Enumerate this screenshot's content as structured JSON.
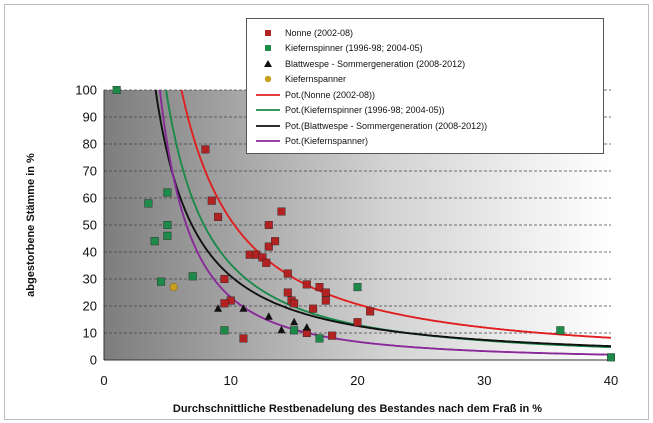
{
  "chart_data": {
    "type": "scatter",
    "title": "",
    "xlabel": "Durchschnittliche  Restbenadelung  des Bestandes  nach dem Fraß in %",
    "ylabel": "abgestorbene Stämme in %",
    "xlim": [
      0,
      40
    ],
    "ylim": [
      0,
      100
    ],
    "x_ticks": [
      "0",
      "10",
      "20",
      "30",
      "40"
    ],
    "y_ticks": [
      "0",
      "10",
      "20",
      "30",
      "40",
      "50",
      "60",
      "70",
      "80",
      "90",
      "100"
    ],
    "grid": "horizontal dashed",
    "legend_position": "top-right",
    "series": [
      {
        "name": "Nonne (2002-08)",
        "marker": "square",
        "color": "#b22222",
        "points": [
          [
            8,
            78
          ],
          [
            8.5,
            59
          ],
          [
            9,
            53
          ],
          [
            9.5,
            30
          ],
          [
            10,
            22
          ],
          [
            11,
            8
          ],
          [
            11.5,
            39
          ],
          [
            12,
            39
          ],
          [
            12.5,
            38
          ],
          [
            12.8,
            36
          ],
          [
            13,
            42
          ],
          [
            13,
            50
          ],
          [
            13.5,
            44
          ],
          [
            14,
            55
          ],
          [
            14.5,
            32
          ],
          [
            14.5,
            25
          ],
          [
            14.8,
            22
          ],
          [
            15,
            21
          ],
          [
            16,
            28
          ],
          [
            16.5,
            19
          ],
          [
            17,
            27
          ],
          [
            17.5,
            25
          ],
          [
            17.5,
            22
          ],
          [
            18,
            9
          ],
          [
            20,
            14
          ],
          [
            21,
            18
          ],
          [
            16,
            10
          ],
          [
            9.5,
            21
          ]
        ]
      },
      {
        "name": "Kiefernspinner (1996-98; 2004-05)",
        "marker": "square",
        "color": "#1e8a4a",
        "points": [
          [
            1,
            100
          ],
          [
            3.5,
            58
          ],
          [
            4,
            44
          ],
          [
            5,
            62
          ],
          [
            5,
            50
          ],
          [
            5,
            46
          ],
          [
            4.5,
            29
          ],
          [
            7,
            31
          ],
          [
            9.5,
            11
          ],
          [
            15,
            11
          ],
          [
            17,
            8
          ],
          [
            20,
            27
          ],
          [
            36,
            11
          ],
          [
            40,
            1
          ]
        ]
      },
      {
        "name": "Blattwespe - Sommergeneration (2008-2012)",
        "marker": "triangle",
        "color": "#111111",
        "points": [
          [
            9,
            19
          ],
          [
            11,
            19
          ],
          [
            13,
            16
          ],
          [
            14,
            11
          ],
          [
            15,
            14
          ],
          [
            16,
            12
          ]
        ]
      },
      {
        "name": "Kiefernspanner",
        "marker": "circle",
        "color": "#c8a020",
        "points": [
          [
            5.5,
            27
          ]
        ]
      }
    ],
    "trendlines": [
      {
        "name": "Pot.(Nonne (2002-08))",
        "color": "#e02020",
        "a": 1110,
        "b": -1.33,
        "xstart": 3.8
      },
      {
        "name": "Pot.(Kiefernspinner (1996-98; 2004-05))",
        "color": "#1a8a4a",
        "a": 1000,
        "b": -1.45,
        "xstart": 1.9
      },
      {
        "name": "Pot.(Blattwespe - Sommergeneration (2008-2012))",
        "color": "#111111",
        "a": 620,
        "b": -1.3,
        "xstart": 1.9
      },
      {
        "name": "Pot.(Kiefernspanner)",
        "color": "#8a2a9a",
        "a": 1400,
        "b": -1.78,
        "xstart": 1.8
      }
    ]
  },
  "legend": {
    "items": [
      {
        "label": "Nonne (2002-08)",
        "symbol": "square",
        "color": "#b22222"
      },
      {
        "label": "Kiefernspinner (1996-98; 2004-05)",
        "symbol": "square",
        "color": "#1e8a4a"
      },
      {
        "label": "Blattwespe - Sommergeneration (2008-2012)",
        "symbol": "triangle",
        "color": "#111111"
      },
      {
        "label": "Kiefernspanner",
        "symbol": "circle",
        "color": "#c8a020"
      },
      {
        "label": "Pot.(Nonne (2002-08))",
        "symbol": "line",
        "color": "#e02020"
      },
      {
        "label": "Pot.(Kiefernspinner (1996-98; 2004-05))",
        "symbol": "line",
        "color": "#1a8a4a"
      },
      {
        "label": "Pot.(Blattwespe - Sommergeneration (2008-2012))",
        "symbol": "line",
        "color": "#111111"
      },
      {
        "label": "Pot.(Kiefernspanner)",
        "symbol": "line",
        "color": "#8a2a9a"
      }
    ]
  }
}
